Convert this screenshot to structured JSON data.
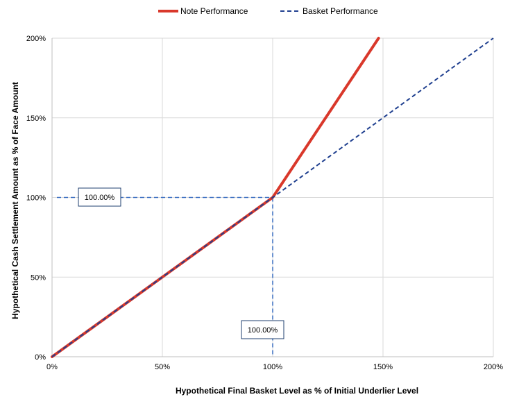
{
  "chart_data": {
    "type": "line",
    "xlabel": "Hypothetical Final Basket Level as % of Initial Underlier Level",
    "ylabel": "Hypothetical Cash Settlement Amount as % of Face Amount",
    "xlim": [
      0,
      200
    ],
    "ylim": [
      0,
      200
    ],
    "x_ticks": [
      0,
      50,
      100,
      150,
      200
    ],
    "y_ticks": [
      0,
      50,
      100,
      150,
      200
    ],
    "x_tick_labels": [
      "0%",
      "50%",
      "100%",
      "150%",
      "200%"
    ],
    "y_tick_labels": [
      "0%",
      "50%",
      "100%",
      "150%",
      "200%"
    ],
    "grid": "vertical and horizontal",
    "legend_position": "top",
    "series": [
      {
        "name": "Note Performance",
        "color": "#d9382b",
        "style": "solid",
        "x": [
          0,
          100,
          148
        ],
        "y": [
          0,
          100,
          200
        ]
      },
      {
        "name": "Basket Performance",
        "color": "#1f3f8f",
        "style": "dashed",
        "x": [
          0,
          200
        ],
        "y": [
          0,
          200
        ]
      }
    ],
    "reference_lines": {
      "color": "#3a6fc1",
      "point": {
        "x": 100,
        "y": 100
      }
    },
    "annotations": [
      {
        "text": "100.00%",
        "anchor": "y-axis",
        "value": 100
      },
      {
        "text": "100.00%",
        "anchor": "x-axis",
        "value": 100
      }
    ]
  }
}
